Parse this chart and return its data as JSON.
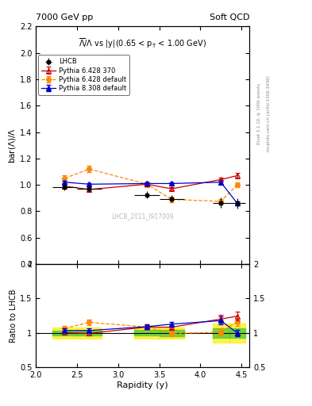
{
  "title_left": "7000 GeV pp",
  "title_right": "Soft QCD",
  "plot_title": "$\\overline{\\Lambda}/\\Lambda$ vs |y|(0.65 < p$_\\mathrm{T}$ < 1.00 GeV)",
  "ylabel_main": "bar($\\Lambda$)/$\\Lambda$",
  "ylabel_ratio": "Ratio to LHCB",
  "xlabel": "Rapidity (y)",
  "right_label_top": "Rivet 3.1.10, ≥ 100k events",
  "right_label_bot": "mcplots.cern.ch [arXiv:1306.3436]",
  "watermark": "LHCB_2011_I917009",
  "ylim_main": [
    0.4,
    2.2
  ],
  "ylim_ratio": [
    0.5,
    2.0
  ],
  "xlim": [
    2.0,
    4.6
  ],
  "lhcb_x": [
    2.35,
    2.65,
    3.35,
    3.65,
    4.25,
    4.45
  ],
  "lhcb_y": [
    0.985,
    0.97,
    0.925,
    0.895,
    0.865,
    0.86
  ],
  "lhcb_yerr": [
    0.025,
    0.025,
    0.025,
    0.025,
    0.04,
    0.04
  ],
  "lhcb_xerr": [
    0.15,
    0.15,
    0.15,
    0.15,
    0.1,
    0.1
  ],
  "p6370_x": [
    2.35,
    2.65,
    3.35,
    3.65,
    4.25,
    4.45
  ],
  "p6370_y": [
    0.99,
    0.965,
    1.005,
    0.97,
    1.04,
    1.07
  ],
  "p6370_yerr": [
    0.01,
    0.01,
    0.01,
    0.01,
    0.015,
    0.02
  ],
  "p6def_x": [
    2.35,
    2.65,
    3.35,
    3.65,
    4.25,
    4.45
  ],
  "p6def_y": [
    1.05,
    1.12,
    1.005,
    0.89,
    0.875,
    1.0
  ],
  "p6def_yerr": [
    0.02,
    0.025,
    0.02,
    0.02,
    0.02,
    0.02
  ],
  "p8def_x": [
    2.35,
    2.65,
    3.35,
    3.65,
    4.25,
    4.45
  ],
  "p8def_y": [
    1.02,
    1.005,
    1.01,
    1.01,
    1.02,
    0.86
  ],
  "p8def_yerr": [
    0.01,
    0.01,
    0.01,
    0.01,
    0.015,
    0.015
  ],
  "color_lhcb": "#000000",
  "color_p6370": "#cc0000",
  "color_p6def": "#ff8800",
  "color_p8def": "#0000cc",
  "yticks_main": [
    0.4,
    0.6,
    0.8,
    1.0,
    1.2,
    1.4,
    1.6,
    1.8,
    2.0,
    2.2
  ],
  "yticks_ratio": [
    0.5,
    1.0,
    1.5,
    2.0
  ]
}
